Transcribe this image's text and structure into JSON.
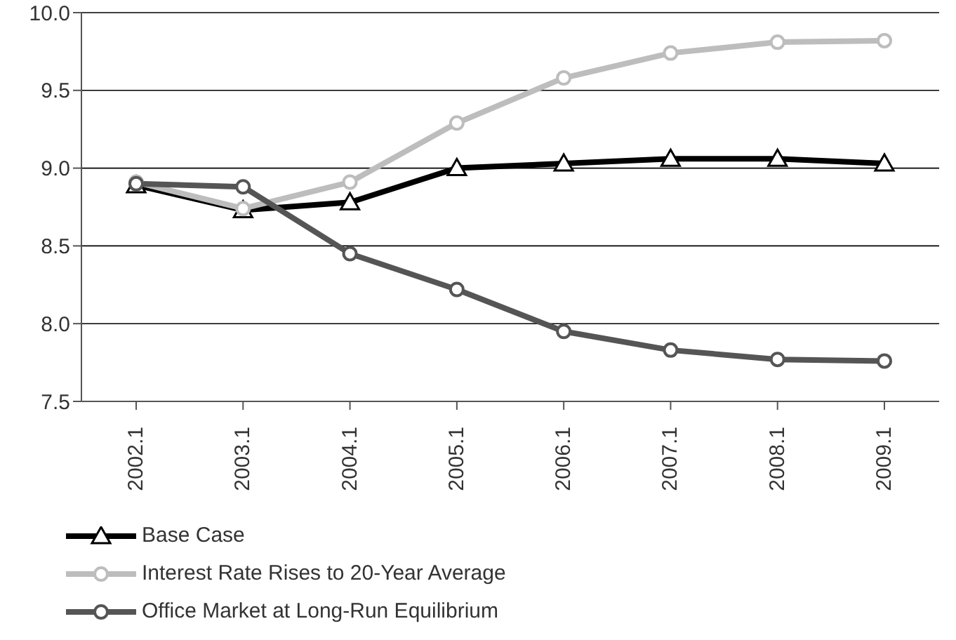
{
  "chart_data": {
    "type": "line",
    "categories": [
      "2002.1",
      "2003.1",
      "2004.1",
      "2005.1",
      "2006.1",
      "2007.1",
      "2008.1",
      "2009.1"
    ],
    "series": [
      {
        "name": "Base Case",
        "color": "#000000",
        "marker": "triangle",
        "values": [
          8.89,
          8.73,
          8.78,
          9.0,
          9.03,
          9.06,
          9.06,
          9.03
        ]
      },
      {
        "name": "Interest Rate Rises to 20-Year Average",
        "color": "#bdbdbd",
        "marker": "circle",
        "values": [
          8.91,
          8.74,
          8.91,
          9.29,
          9.58,
          9.74,
          9.81,
          9.82
        ]
      },
      {
        "name": "Office Market at Long-Run Equilibrium",
        "color": "#555555",
        "marker": "circle",
        "values": [
          8.9,
          8.88,
          8.45,
          8.22,
          7.95,
          7.83,
          7.77,
          7.76
        ]
      }
    ],
    "ylim": [
      7.5,
      10.0
    ],
    "yticks": [
      {
        "value": 7.5,
        "label": "7.5"
      },
      {
        "value": 8,
        "label": "8.0"
      },
      {
        "value": 8.5,
        "label": "8.5"
      },
      {
        "value": 9,
        "label": "9.0"
      },
      {
        "value": 9.5,
        "label": "9.5"
      },
      {
        "value": 10,
        "label": "10.0"
      }
    ],
    "grid": "y",
    "legend": "bottom left",
    "line_style": "solid"
  }
}
